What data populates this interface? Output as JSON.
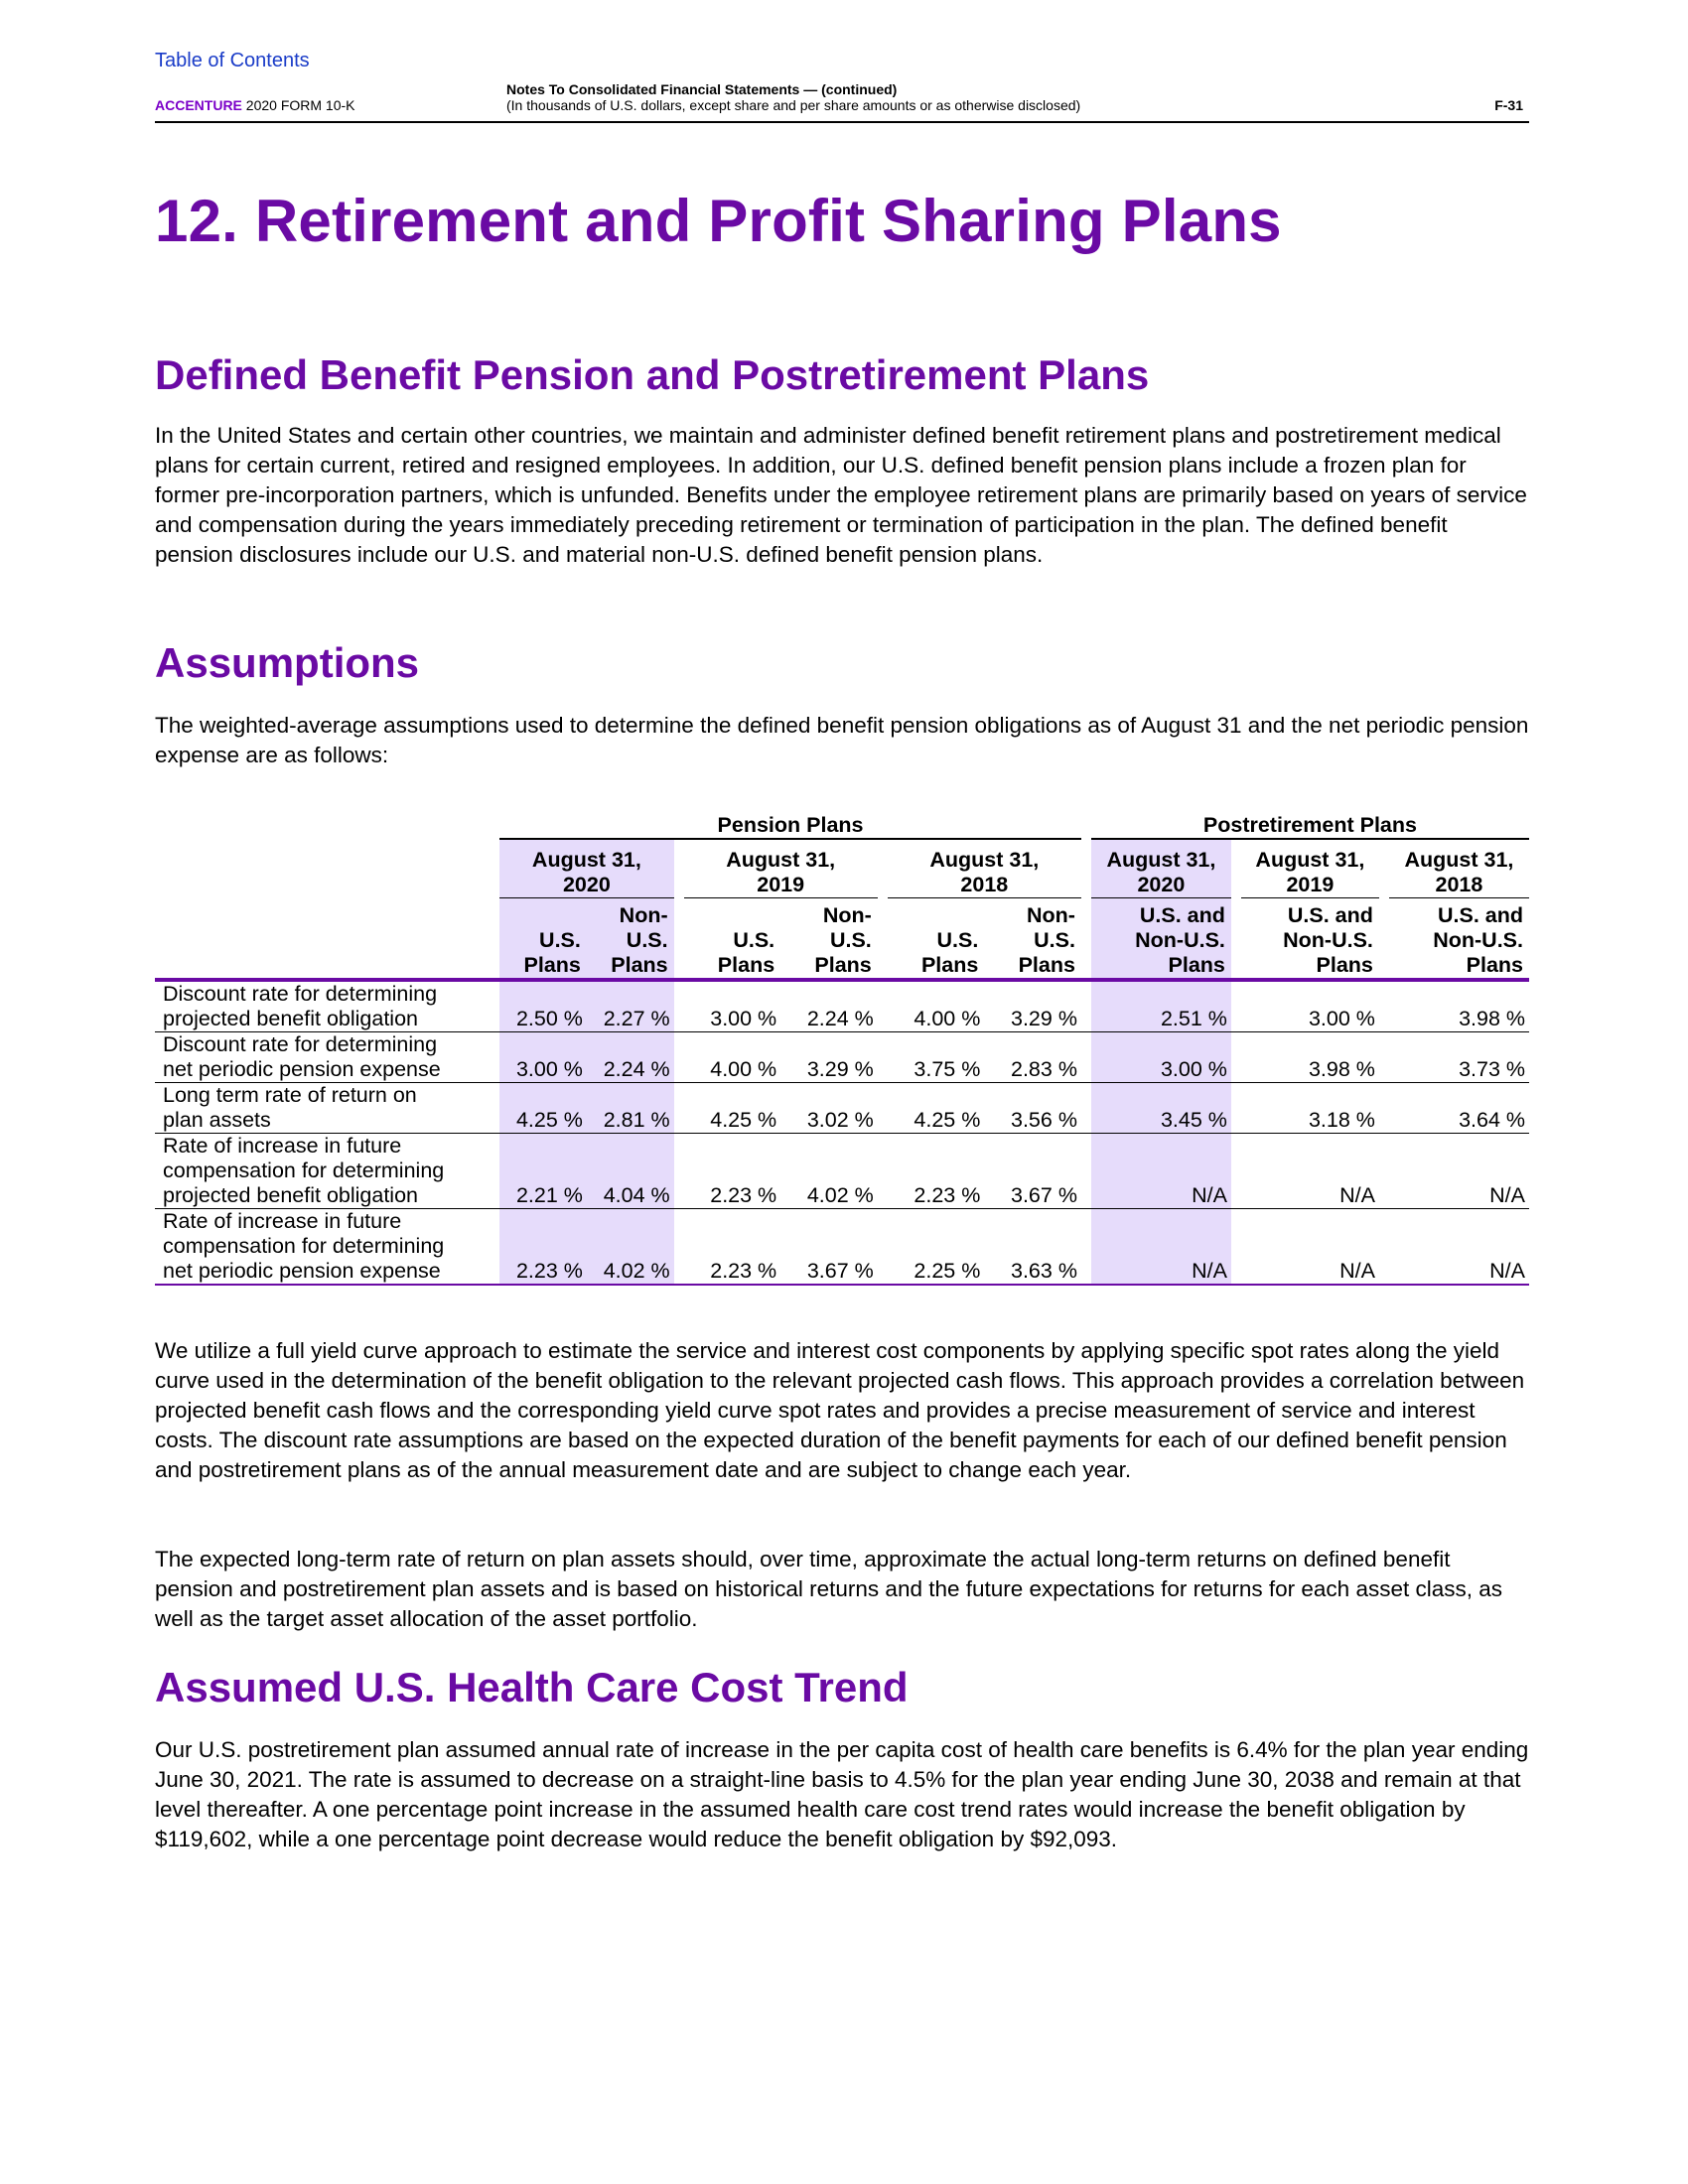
{
  "header": {
    "toc_link": "Table of Contents",
    "brand": "ACCENTURE",
    "form": "2020 FORM 10-K",
    "notes_title": "Notes To Consolidated Financial Statements — (continued)",
    "notes_sub": "(In thousands of U.S. dollars, except share and per share amounts or as otherwise disclosed)",
    "page_number": "F-31"
  },
  "title": "12. Retirement and Profit Sharing Plans",
  "sections": {
    "defined_benefit": {
      "heading": "Defined Benefit Pension and Postretirement Plans",
      "text": "In the United States and certain other countries, we maintain and administer defined benefit retirement plans and postretirement medical plans for certain current, retired and resigned employees. In addition, our U.S. defined benefit pension plans include a frozen plan for former pre-incorporation partners, which is unfunded. Benefits under the employee retirement plans are primarily based on years of service and compensation during the years immediately preceding retirement or termination of participation in the plan. The defined benefit pension disclosures include our U.S. and material non-U.S. defined benefit pension plans."
    },
    "assumptions": {
      "heading": "Assumptions",
      "intro": "The weighted-average assumptions used to determine the defined benefit pension obligations as of August 31 and the net periodic pension expense are as follows:",
      "after1": "We utilize a full yield curve approach to estimate the service and interest cost components by applying specific spot rates along the yield curve used in the determination of the benefit obligation to the relevant projected cash flows. This approach provides a correlation between projected benefit cash flows and the corresponding yield curve spot rates and provides a precise measurement of service and interest costs. The discount rate assumptions are based on the expected duration of the benefit payments for each of our defined benefit pension and postretirement plans as of the annual measurement date and are subject to change each year.",
      "after2": "The expected long-term rate of return on plan assets should, over time, approximate the actual long-term returns on defined benefit pension and postretirement plan assets and is based on historical returns and the future expectations for returns for each asset class, as well as the target asset allocation of the asset portfolio."
    },
    "health_care": {
      "heading": "Assumed U.S. Health Care Cost Trend",
      "text": "Our U.S. postretirement plan assumed annual rate of increase in the per capita cost of health care benefits is 6.4% for the plan year ending June 30, 2021. The rate is assumed to decrease on a straight-line basis to 4.5% for the plan year ending June 30, 2038 and remain at that level thereafter. A one percentage point increase in the assumed health care cost trend rates would increase the benefit obligation by $119,602, while a one percentage point decrease would reduce the benefit obligation by $92,093."
    }
  },
  "table": {
    "group_pension": "Pension Plans",
    "group_post": "Postretirement Plans",
    "date_line1": "August 31,",
    "dates": [
      "2020",
      "2019",
      "2018",
      "2020",
      "2019",
      "2018"
    ],
    "sub_us_1": "U.S.",
    "sub_us_2": "Plans",
    "sub_nonus_1": "Non-",
    "sub_nonus_2": "U.S.",
    "sub_nonus_3": "Plans",
    "sub_post_1": "U.S. and",
    "sub_post_2": "Non-U.S.",
    "sub_post_3": "Plans",
    "rows": [
      {
        "label": [
          "Discount rate for determining",
          "projected benefit obligation"
        ],
        "values": [
          "2.50 %",
          "2.27 %",
          "3.00 %",
          "2.24 %",
          "4.00 %",
          "3.29 %",
          "2.51 %",
          "3.00 %",
          "3.98 %"
        ]
      },
      {
        "label": [
          "Discount rate for determining",
          "net periodic pension expense"
        ],
        "values": [
          "3.00 %",
          "2.24 %",
          "4.00 %",
          "3.29 %",
          "3.75 %",
          "2.83 %",
          "3.00 %",
          "3.98 %",
          "3.73 %"
        ]
      },
      {
        "label": [
          "Long term rate of return on",
          "plan assets"
        ],
        "values": [
          "4.25 %",
          "2.81 %",
          "4.25 %",
          "3.02 %",
          "4.25 %",
          "3.56 %",
          "3.45 %",
          "3.18 %",
          "3.64 %"
        ]
      },
      {
        "label": [
          "Rate of increase in future",
          "compensation for determining",
          "projected benefit obligation"
        ],
        "values": [
          "2.21 %",
          "4.04 %",
          "2.23 %",
          "4.02 %",
          "2.23 %",
          "3.67 %",
          "N/A",
          "N/A",
          "N/A"
        ]
      },
      {
        "label": [
          "Rate of increase in future",
          "compensation for determining",
          "net periodic pension expense"
        ],
        "values": [
          "2.23 %",
          "4.02 %",
          "2.23 %",
          "3.67 %",
          "2.25 %",
          "3.63 %",
          "N/A",
          "N/A",
          "N/A"
        ]
      }
    ]
  }
}
